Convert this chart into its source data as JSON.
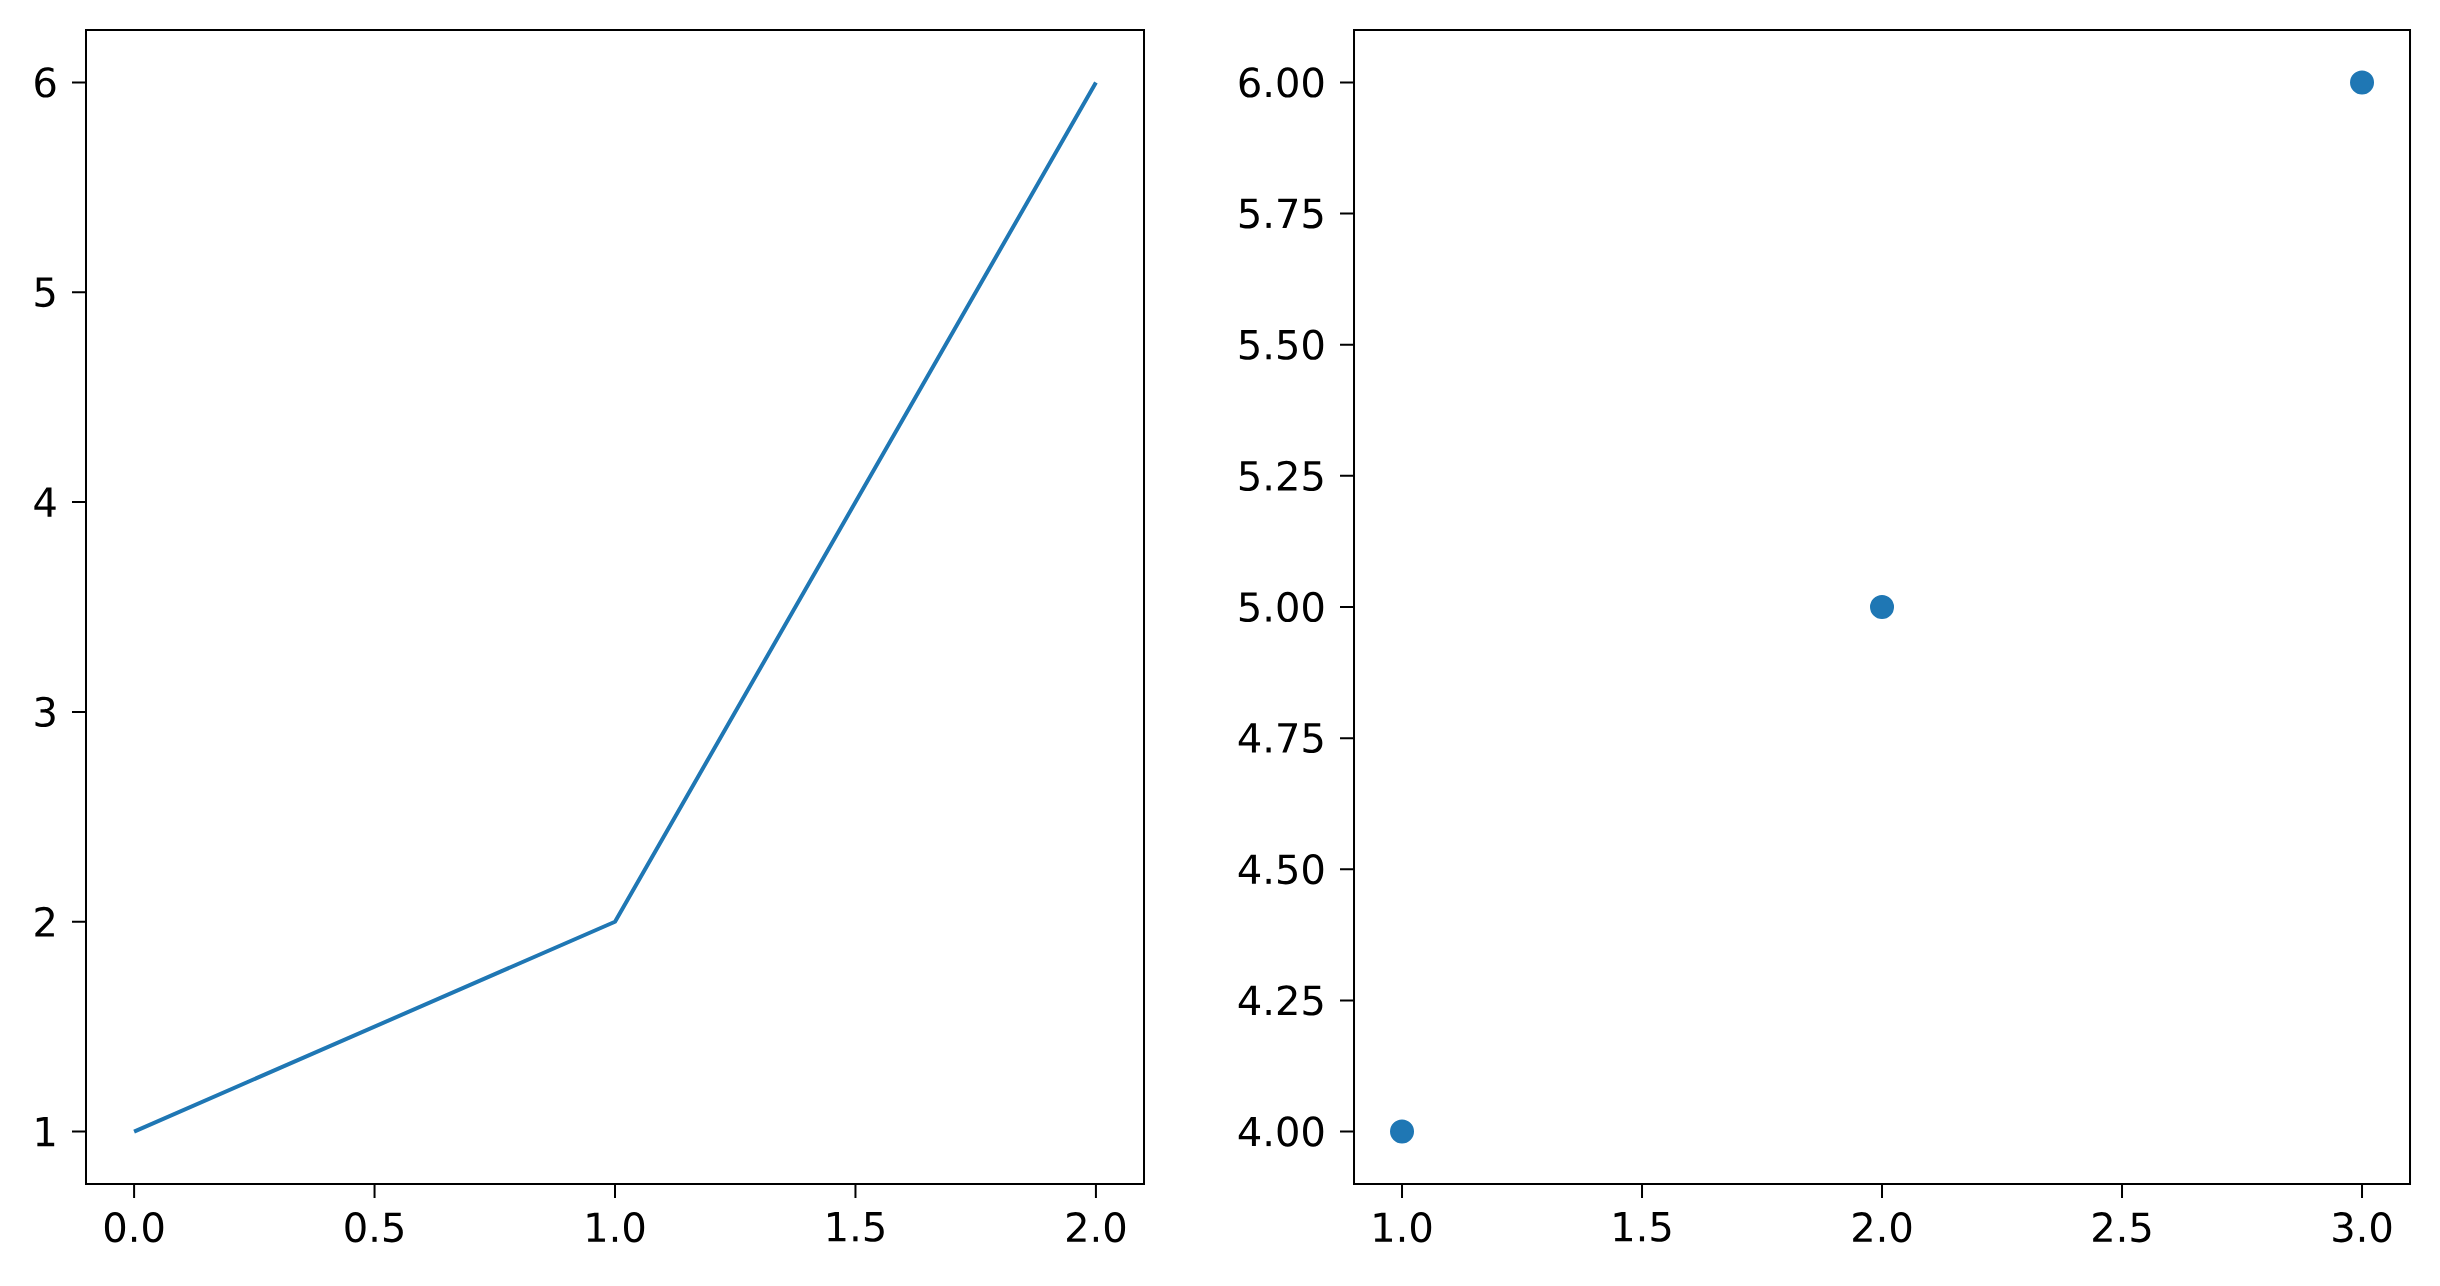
{
  "chart_data": [
    {
      "type": "line",
      "x": [
        0,
        1,
        2
      ],
      "series": [
        {
          "color": "#1f77b4",
          "values": [
            1,
            2,
            6
          ]
        }
      ],
      "xlim": [
        -0.1,
        2.1
      ],
      "ylim": [
        0.75,
        6.25
      ],
      "xticks": [
        {
          "value": 0,
          "label": "0.0"
        },
        {
          "value": 0.5,
          "label": "0.5"
        },
        {
          "value": 1,
          "label": "1.0"
        },
        {
          "value": 1.5,
          "label": "1.5"
        },
        {
          "value": 2,
          "label": "2.0"
        }
      ],
      "yticks": [
        1,
        2,
        3,
        4,
        5,
        6
      ]
    },
    {
      "type": "scatter",
      "x": [
        1,
        2,
        3
      ],
      "marker": "circle",
      "series": [
        {
          "color": "#1f77b4",
          "values": [
            4,
            5,
            6
          ]
        }
      ],
      "xlim": [
        0.9,
        3.1
      ],
      "ylim": [
        3.9,
        6.1
      ],
      "xticks": [
        {
          "value": 1,
          "label": "1.0"
        },
        {
          "value": 1.5,
          "label": "1.5"
        },
        {
          "value": 2,
          "label": "2.0"
        },
        {
          "value": 2.5,
          "label": "2.5"
        },
        {
          "value": 3,
          "label": "3.0"
        }
      ],
      "yticks": [
        {
          "value": 4,
          "label": "4.00"
        },
        {
          "value": 4.25,
          "label": "4.25"
        },
        {
          "value": 4.5,
          "label": "4.50"
        },
        {
          "value": 4.75,
          "label": "4.75"
        },
        {
          "value": 5,
          "label": "5.00"
        },
        {
          "value": 5.25,
          "label": "5.25"
        },
        {
          "value": 5.5,
          "label": "5.50"
        },
        {
          "value": 5.75,
          "label": "5.75"
        },
        {
          "value": 6,
          "label": "6.00"
        }
      ]
    }
  ]
}
